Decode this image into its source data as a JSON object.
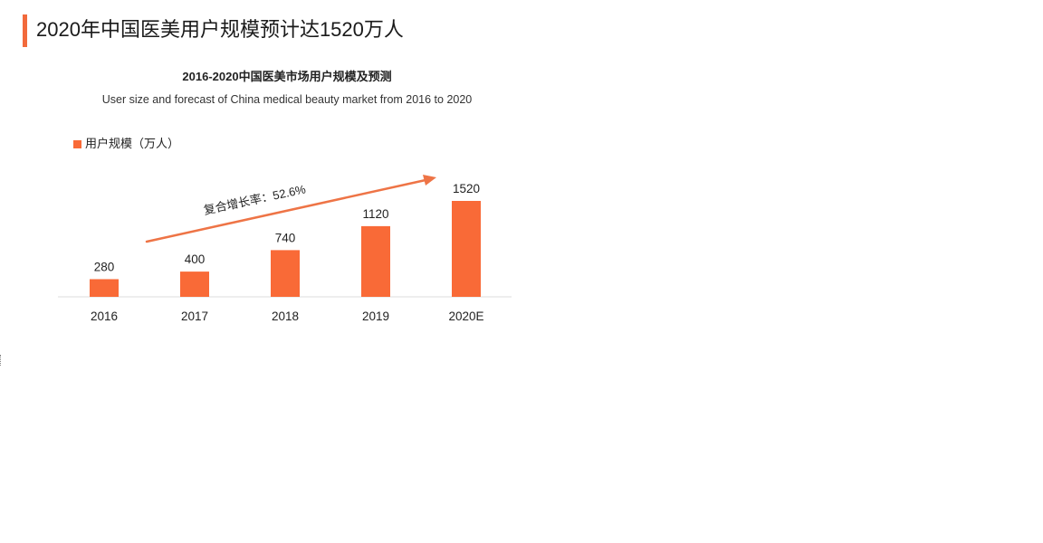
{
  "page": {
    "heading": "2020年中国医美用户规模预计达1520万人"
  },
  "colors": {
    "accent": "#f26a3c",
    "bar": "#f96a37",
    "arrow": "#ee7446",
    "axis": "#dddddd"
  },
  "chart_data": {
    "type": "bar",
    "title": "2016-2020中国医美市场用户规模及预测",
    "subtitle": "User size and forecast of China medical beauty market from 2016 to 2020",
    "legend": {
      "label": "用户规模（万人）",
      "placement": "top-left"
    },
    "categories": [
      "2016",
      "2017",
      "2018",
      "2019",
      "2020E"
    ],
    "series": [
      {
        "name": "用户规模（万人）",
        "values": [
          280,
          400,
          740,
          1120,
          1520
        ]
      }
    ],
    "data_labels": [
      "280",
      "400",
      "740",
      "1120",
      "1520"
    ],
    "ylim": [
      0,
      1520
    ],
    "grid": false,
    "annotation": {
      "text": "复合增长率：52.6%",
      "type": "trend-arrow"
    }
  }
}
